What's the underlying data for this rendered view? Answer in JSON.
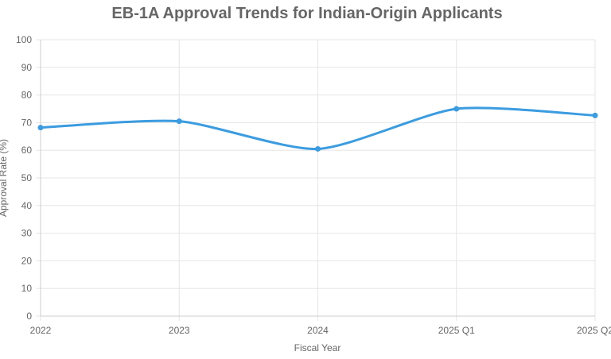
{
  "chart_data": {
    "type": "line",
    "title": "EB-1A Approval Trends for Indian-Origin Applicants",
    "xlabel": "Fiscal Year",
    "ylabel": "Approval Rate (%)",
    "categories": [
      "2022",
      "2023",
      "2024",
      "2025 Q1",
      "2025 Q2"
    ],
    "series": [
      {
        "name": "Approval Rate (%)",
        "values": [
          68.2,
          70.5,
          60.5,
          75.0,
          72.6
        ],
        "color": "#3b9ce0"
      }
    ],
    "ylim": [
      0,
      100
    ],
    "yticks": [
      "0",
      "10",
      "20",
      "30",
      "40",
      "50",
      "60",
      "70",
      "80",
      "90",
      "100"
    ],
    "grid": true,
    "legend": "none"
  },
  "colors": {
    "grid": "#e6e6e6",
    "axis": "#cccccc",
    "text": "#666666",
    "line": "#3b9ce0"
  }
}
